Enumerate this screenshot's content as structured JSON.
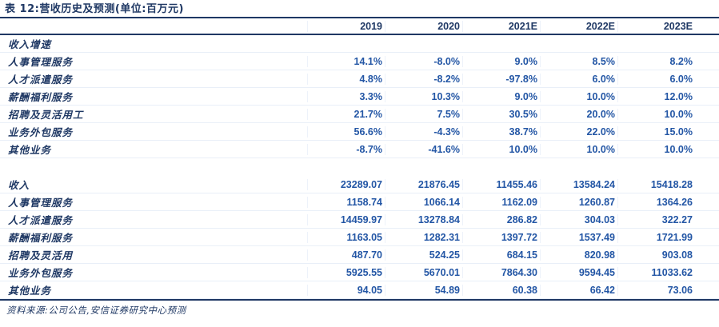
{
  "title": "表 12:营收历史及预测(单位:百万元)",
  "footer": "资料来源:公司公告,安信证券研究中心预测",
  "colors": {
    "navy": "#1F3864",
    "number_blue": "#2356A5",
    "grid_line": "#E9EFF8",
    "background": "#FFFFFF"
  },
  "table": {
    "columns": [
      "2019",
      "2020",
      "2021E",
      "2022E",
      "2023E"
    ],
    "rows": [
      {
        "type": "group",
        "label": "收入增速",
        "values": [
          "",
          "",
          "",
          "",
          ""
        ]
      },
      {
        "type": "data",
        "label": "人事管理服务",
        "values": [
          "14.1%",
          "-8.0%",
          "9.0%",
          "8.5%",
          "8.2%"
        ]
      },
      {
        "type": "data",
        "label": "人才派遣服务",
        "values": [
          "4.8%",
          "-8.2%",
          "-97.8%",
          "6.0%",
          "6.0%"
        ]
      },
      {
        "type": "data",
        "label": "薪酬福利服务",
        "values": [
          "3.3%",
          "10.3%",
          "9.0%",
          "10.0%",
          "12.0%"
        ]
      },
      {
        "type": "data",
        "label": "招聘及灵活用工",
        "values": [
          "21.7%",
          "7.5%",
          "30.5%",
          "20.0%",
          "10.0%"
        ]
      },
      {
        "type": "data",
        "label": "业务外包服务",
        "values": [
          "56.6%",
          "-4.3%",
          "38.7%",
          "22.0%",
          "15.0%"
        ]
      },
      {
        "type": "data",
        "label": "其他业务",
        "values": [
          "-8.7%",
          "-41.6%",
          "10.0%",
          "10.0%",
          "10.0%"
        ]
      },
      {
        "type": "spacer",
        "label": "",
        "values": [
          "",
          "",
          "",
          "",
          ""
        ]
      },
      {
        "type": "data",
        "label": "收入",
        "values": [
          "23289.07",
          "21876.45",
          "11455.46",
          "13584.24",
          "15418.28"
        ]
      },
      {
        "type": "data",
        "label": "人事管理服务",
        "values": [
          "1158.74",
          "1066.14",
          "1162.09",
          "1260.87",
          "1364.26"
        ]
      },
      {
        "type": "data",
        "label": "人才派遣服务",
        "values": [
          "14459.97",
          "13278.84",
          "286.82",
          "304.03",
          "322.27"
        ]
      },
      {
        "type": "data",
        "label": "薪酬福利服务",
        "values": [
          "1163.05",
          "1282.31",
          "1397.72",
          "1537.49",
          "1721.99"
        ]
      },
      {
        "type": "data",
        "label": "招聘及灵活用",
        "values": [
          "487.70",
          "524.25",
          "684.15",
          "820.98",
          "903.08"
        ]
      },
      {
        "type": "data",
        "label": "业务外包服务",
        "values": [
          "5925.55",
          "5670.01",
          "7864.30",
          "9594.45",
          "11033.62"
        ]
      },
      {
        "type": "data",
        "label": "其他业务",
        "values": [
          "94.05",
          "54.89",
          "60.38",
          "66.42",
          "73.06"
        ]
      }
    ]
  }
}
